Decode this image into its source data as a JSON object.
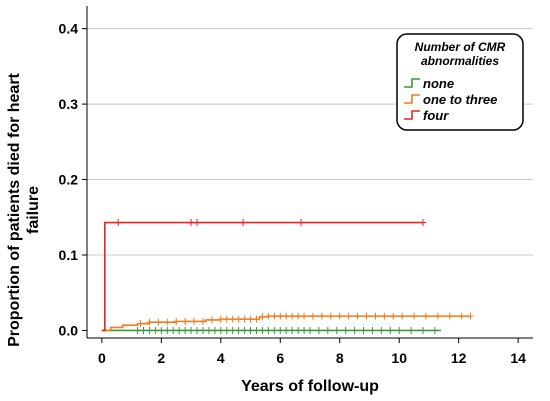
{
  "chart_data": {
    "type": "line",
    "xlabel": "Years of follow-up",
    "ylabel": "Proportion of patients died for heart failure",
    "ylabel_lines": [
      "Proportion of patients died for heart",
      "failure"
    ],
    "xlim": [
      -0.5,
      14.5
    ],
    "ylim": [
      -0.01,
      0.43
    ],
    "x_ticks": [
      0,
      2,
      4,
      6,
      8,
      10,
      12,
      14
    ],
    "x_tick_labels": [
      "0",
      "2",
      "4",
      "6",
      "8",
      "10",
      "12",
      "14"
    ],
    "y_ticks": [
      0.0,
      0.1,
      0.2,
      0.3,
      0.4
    ],
    "y_tick_labels": [
      "0.0",
      "0.1",
      "0.2",
      "0.3",
      "0.4"
    ],
    "grid": "horizontal",
    "legend": {
      "title_lines": [
        "Number of CMR",
        "abnormalities"
      ],
      "placement": "top-right"
    },
    "series": [
      {
        "name": "none",
        "color": "#3a9a3a",
        "steps": [
          [
            0,
            0.0
          ],
          [
            11.4,
            0.0
          ]
        ],
        "censor": [
          1.2,
          1.4,
          1.6,
          1.8,
          2.0,
          2.2,
          2.4,
          2.6,
          2.8,
          3.0,
          3.2,
          3.4,
          3.6,
          3.8,
          4.0,
          4.2,
          4.4,
          4.6,
          4.8,
          5.0,
          5.2,
          5.4,
          5.6,
          5.8,
          6.0,
          6.2,
          6.4,
          6.6,
          6.8,
          7.0,
          7.3,
          7.6,
          7.9,
          8.2,
          8.5,
          8.8,
          9.1,
          9.4,
          9.7,
          10.0,
          10.4,
          10.8,
          11.2
        ]
      },
      {
        "name": "one to three",
        "color": "#f07c1c",
        "steps": [
          [
            0,
            0.0
          ],
          [
            0.3,
            0.004
          ],
          [
            0.7,
            0.007
          ],
          [
            1.2,
            0.009
          ],
          [
            1.6,
            0.011
          ],
          [
            2.5,
            0.012
          ],
          [
            3.5,
            0.014
          ],
          [
            4.0,
            0.015
          ],
          [
            5.3,
            0.018
          ],
          [
            5.6,
            0.019
          ],
          [
            12.4,
            0.019
          ]
        ],
        "censor": [
          1.3,
          1.6,
          1.9,
          2.2,
          2.5,
          2.8,
          3.1,
          3.4,
          3.7,
          4.0,
          4.2,
          4.4,
          4.6,
          4.8,
          5.0,
          5.2,
          5.4,
          5.6,
          5.8,
          6.0,
          6.2,
          6.4,
          6.6,
          6.8,
          7.1,
          7.4,
          7.7,
          8.0,
          8.3,
          8.6,
          8.9,
          9.2,
          9.5,
          9.8,
          10.1,
          10.5,
          10.9,
          11.3,
          11.7,
          12.1,
          12.4
        ]
      },
      {
        "name": "four",
        "color": "#e8241c",
        "steps": [
          [
            0,
            0.0
          ],
          [
            0.1,
            0.143
          ],
          [
            10.8,
            0.143
          ]
        ],
        "censor": [
          0.55,
          3.0,
          3.2,
          4.75,
          6.7,
          10.8
        ]
      }
    ]
  }
}
